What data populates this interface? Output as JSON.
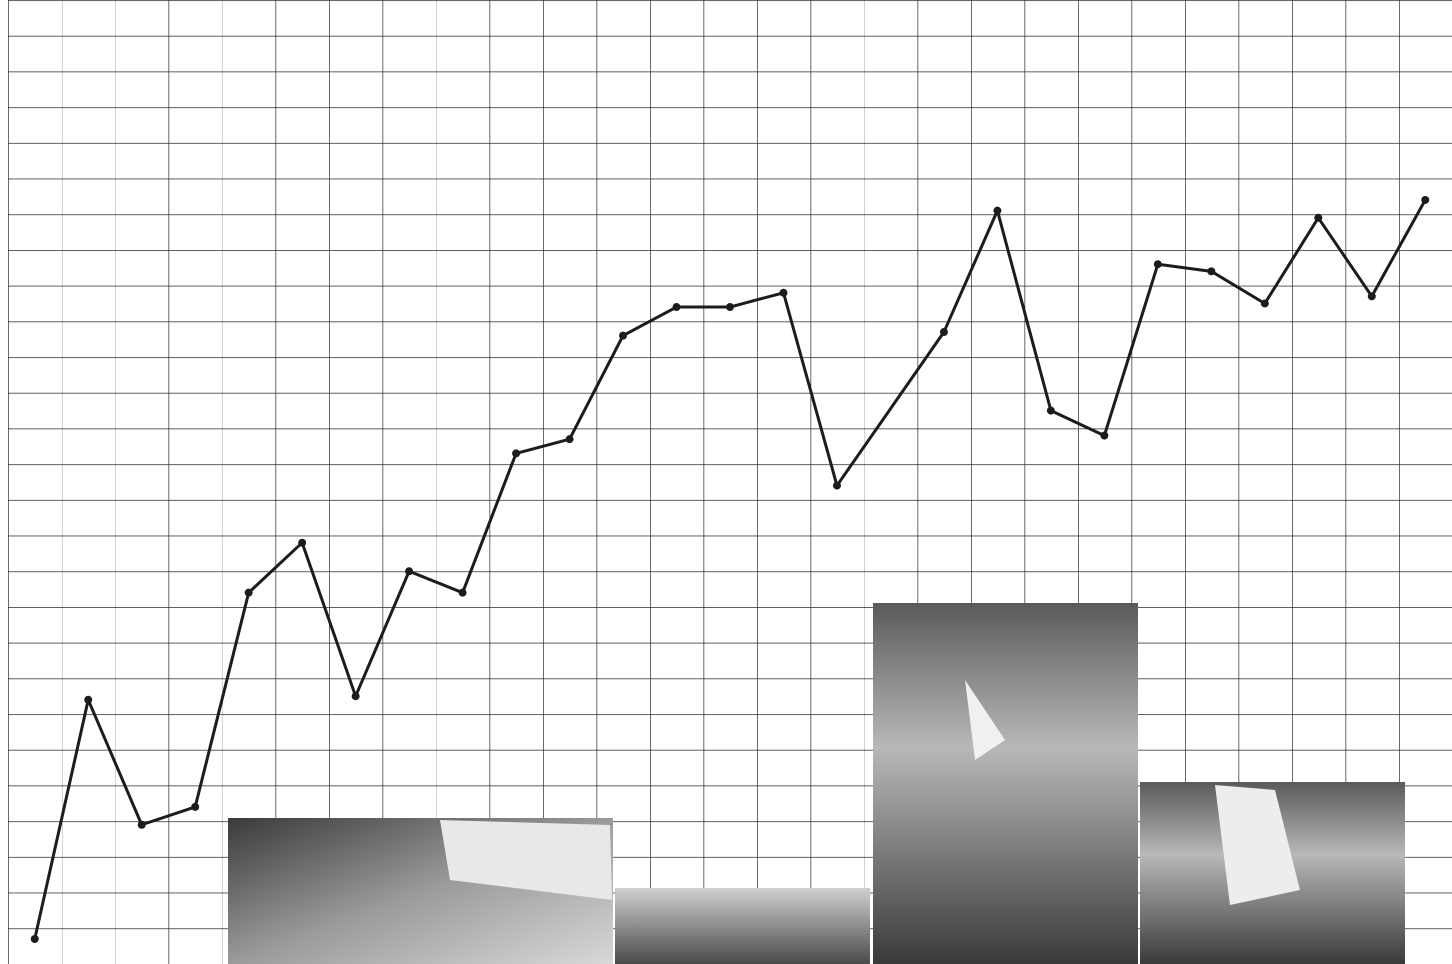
{
  "chart_data": {
    "type": "line",
    "x": [
      0,
      1,
      2,
      3,
      4,
      5,
      6,
      7,
      8,
      9,
      10,
      11,
      12,
      13,
      14,
      15,
      17,
      18,
      19,
      20,
      21,
      22,
      23,
      24,
      25,
      26
    ],
    "series": [
      {
        "color": "#1c1c1c",
        "values": [
          0.7,
          7.4,
          3.9,
          4.4,
          10.4,
          11.8,
          7.5,
          11.0,
          10.4,
          14.3,
          14.7,
          17.6,
          18.4,
          18.4,
          18.8,
          13.4,
          17.7,
          21.1,
          15.5,
          14.8,
          19.6,
          19.4,
          18.5,
          20.9,
          18.7,
          21.4
        ]
      }
    ],
    "xlim": [
      -0.5,
      26.5
    ],
    "ylim": [
      0,
      27
    ]
  }
}
